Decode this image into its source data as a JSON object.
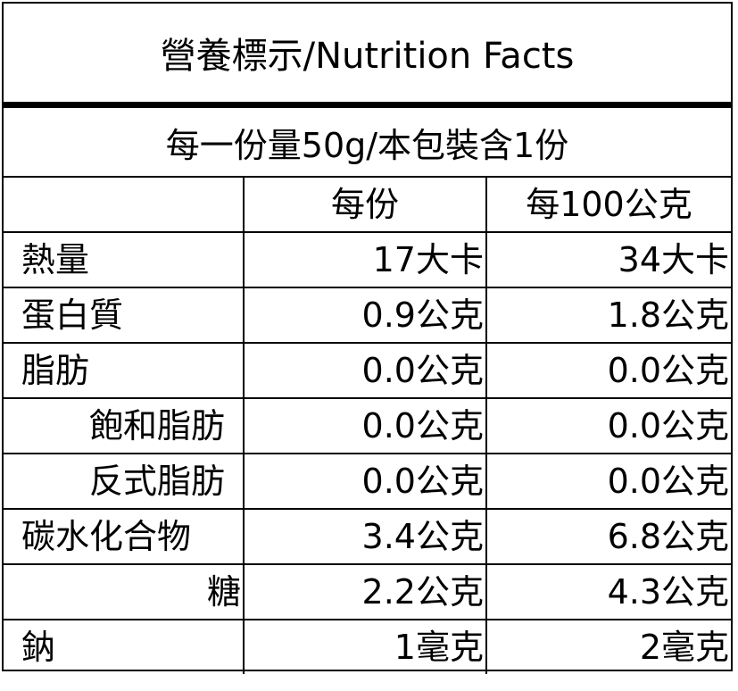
{
  "title": "營養標示/Nutrition Facts",
  "serving": "每一份量50g/本包裝含1份",
  "columns": {
    "blank": "",
    "per_serving": "每份",
    "per_100g": "每100公克"
  },
  "rows": [
    {
      "name": "熱量",
      "per_serving": "17大卡",
      "per_100g": "34大卡"
    },
    {
      "name": "蛋白質",
      "per_serving": "0.9公克",
      "per_100g": "1.8公克"
    },
    {
      "name": "脂肪",
      "per_serving": "0.0公克",
      "per_100g": "0.0公克"
    },
    {
      "name": "飽和脂肪",
      "per_serving": "0.0公克",
      "per_100g": "0.0公克"
    },
    {
      "name": "反式脂肪",
      "per_serving": "0.0公克",
      "per_100g": "0.0公克"
    },
    {
      "name": "碳水化合物",
      "per_serving": "3.4公克",
      "per_100g": "6.8公克"
    },
    {
      "name": "糖",
      "per_serving": "2.2公克",
      "per_100g": "4.3公克"
    },
    {
      "name": "鈉",
      "per_serving": "1毫克",
      "per_100g": "2毫克"
    }
  ]
}
